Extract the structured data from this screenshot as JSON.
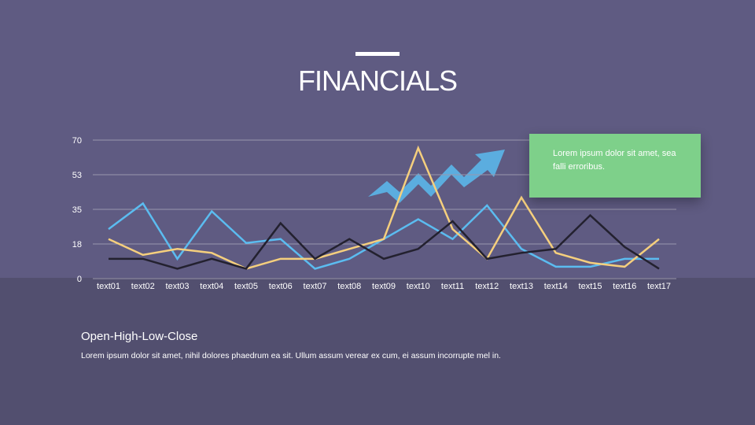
{
  "title": "FINANCIALS",
  "callout": "Lorem ipsum dolor sit amet, sea falli erroribus.",
  "subtitle": "Open-High-Low-Close",
  "description": "Lorem ipsum dolor sit amet, nihil dolores phaedrum ea sit. Ullum assum verear ex cum, ei assum incorrupte mel in.",
  "chart_data": {
    "type": "line",
    "categories": [
      "text01",
      "text02",
      "text03",
      "text04",
      "text05",
      "text06",
      "text07",
      "text08",
      "text09",
      "text10",
      "text11",
      "text12",
      "text13",
      "text14",
      "text15",
      "text16",
      "text17"
    ],
    "yticks": [
      "0",
      "18",
      "35",
      "53",
      "70"
    ],
    "ylim": [
      0,
      70
    ],
    "grid": true,
    "series": [
      {
        "color": "#5bbcf0",
        "values": [
          25,
          38,
          10,
          34,
          18,
          20,
          5,
          10,
          20,
          30,
          20,
          37,
          15,
          6,
          6,
          10,
          10
        ]
      },
      {
        "color": "#f5cf7d",
        "values": [
          20,
          12,
          15,
          13,
          5,
          10,
          10,
          15,
          20,
          66,
          25,
          10,
          41,
          13,
          8,
          6,
          20
        ]
      },
      {
        "color": "#23212f",
        "values": [
          10,
          10,
          5,
          10,
          5,
          28,
          10,
          20,
          10,
          15,
          29,
          10,
          13,
          15,
          32,
          16,
          5
        ]
      }
    ]
  },
  "decoration": {
    "arrow_color": "#5bbcf0",
    "icon": "trend-up-arrow-icon"
  }
}
